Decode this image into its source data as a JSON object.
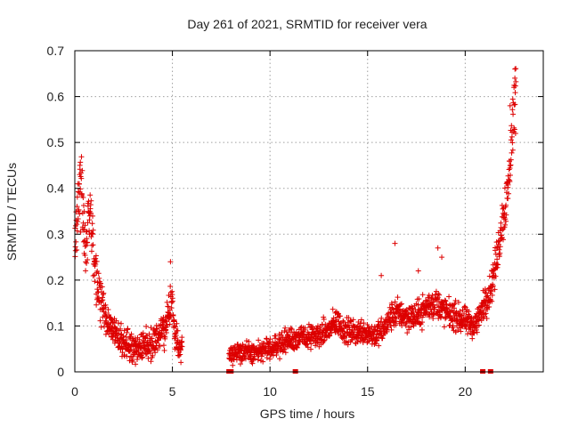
{
  "chart_data": {
    "type": "scatter",
    "title": "Day 261 of 2021, SRMTID for receiver vera",
    "xlabel": "GPS time / hours",
    "ylabel": "SRMTID / TECUs",
    "xlim": [
      0,
      24
    ],
    "ylim": [
      0,
      0.7
    ],
    "x_ticks": [
      0,
      5,
      10,
      15,
      20
    ],
    "x_tick_labels": [
      "0",
      "5",
      "10",
      "15",
      "20"
    ],
    "y_ticks": [
      0,
      0.1,
      0.2,
      0.3,
      0.4,
      0.5,
      0.6,
      0.7
    ],
    "y_tick_labels": [
      "0",
      "0.1",
      "0.2",
      "0.3",
      "0.4",
      "0.5",
      "0.6",
      "0.7"
    ],
    "grid": true,
    "marker": "+",
    "marker_color": "#dd0000",
    "series": [
      {
        "name": "SRMTID",
        "profile": [
          [
            0.0,
            0.27
          ],
          [
            0.15,
            0.36
          ],
          [
            0.35,
            0.42
          ],
          [
            0.55,
            0.25
          ],
          [
            0.8,
            0.36
          ],
          [
            1.0,
            0.22
          ],
          [
            1.3,
            0.16
          ],
          [
            1.6,
            0.12
          ],
          [
            1.9,
            0.09
          ],
          [
            2.3,
            0.07
          ],
          [
            2.8,
            0.055
          ],
          [
            3.4,
            0.055
          ],
          [
            3.9,
            0.065
          ],
          [
            4.3,
            0.075
          ],
          [
            4.7,
            0.1
          ],
          [
            4.95,
            0.17
          ],
          [
            5.1,
            0.09
          ],
          [
            5.3,
            0.06
          ],
          [
            5.5,
            0.05
          ]
        ],
        "profile_2": [
          [
            7.9,
            0.04
          ],
          [
            8.5,
            0.045
          ],
          [
            9.0,
            0.04
          ],
          [
            9.5,
            0.045
          ],
          [
            10.0,
            0.05
          ],
          [
            10.5,
            0.06
          ],
          [
            11.0,
            0.07
          ],
          [
            11.5,
            0.075
          ],
          [
            12.0,
            0.075
          ],
          [
            12.5,
            0.08
          ],
          [
            13.0,
            0.09
          ],
          [
            13.4,
            0.11
          ],
          [
            13.8,
            0.09
          ],
          [
            14.3,
            0.085
          ],
          [
            14.8,
            0.09
          ],
          [
            15.3,
            0.08
          ],
          [
            15.8,
            0.09
          ],
          [
            16.2,
            0.12
          ],
          [
            16.6,
            0.13
          ],
          [
            17.0,
            0.12
          ],
          [
            17.5,
            0.12
          ],
          [
            18.0,
            0.14
          ],
          [
            18.5,
            0.15
          ],
          [
            19.0,
            0.13
          ],
          [
            19.5,
            0.12
          ],
          [
            20.0,
            0.11
          ],
          [
            20.5,
            0.1
          ],
          [
            20.9,
            0.14
          ],
          [
            21.3,
            0.18
          ],
          [
            21.6,
            0.24
          ],
          [
            21.9,
            0.33
          ],
          [
            22.2,
            0.4
          ],
          [
            22.4,
            0.52
          ],
          [
            22.6,
            0.62
          ]
        ],
        "ground_marks_x": [
          7.9,
          8.0,
          11.3,
          20.9,
          21.3
        ]
      }
    ]
  }
}
